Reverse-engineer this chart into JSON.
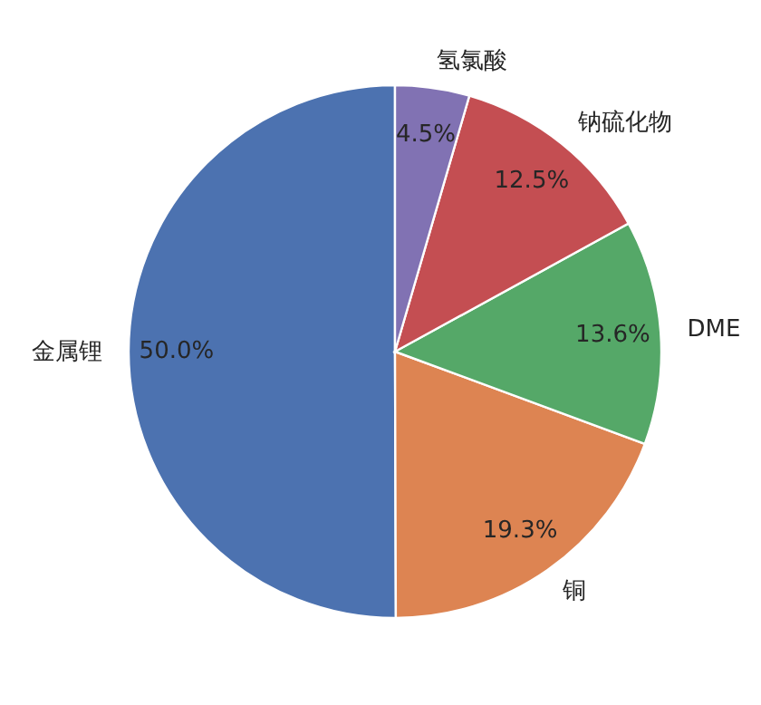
{
  "chart_data": {
    "type": "pie",
    "categories": [
      "金属锂",
      "铜",
      "DME",
      "钠硫化物",
      "氢氯酸"
    ],
    "values": [
      50.0,
      19.3,
      13.6,
      12.5,
      4.5
    ],
    "value_labels": [
      "50.0%",
      "19.3%",
      "13.6%",
      "12.5%",
      "4.5%"
    ],
    "colors": [
      "#4c72b0",
      "#dd8452",
      "#55a868",
      "#c44e52",
      "#8172b3"
    ]
  }
}
